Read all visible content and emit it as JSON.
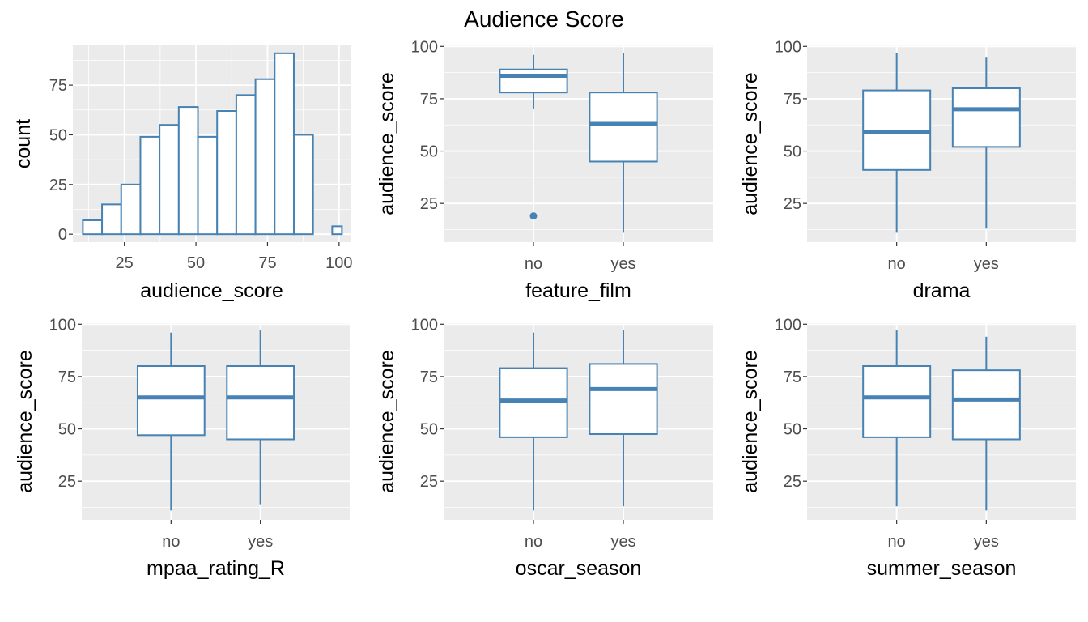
{
  "title": "Audience Score",
  "colors": {
    "panel_bg": "#EBEBEB",
    "grid": "#FFFFFF",
    "stroke": "#4682B4",
    "fill": "#FFFFFF",
    "tick_text": "#4D4D4D",
    "tick_mark": "#333333"
  },
  "chart_data": [
    {
      "type": "histogram",
      "xlabel": "audience_score",
      "ylabel": "count",
      "xlim": [
        7,
        104
      ],
      "ylim": [
        -4,
        95
      ],
      "xticks": [
        25,
        50,
        75,
        100
      ],
      "yticks": [
        0,
        25,
        50,
        75
      ],
      "bin_width": 6.7,
      "bins": [
        {
          "x0": 10.5,
          "x1": 17.2,
          "count": 7
        },
        {
          "x0": 17.2,
          "x1": 23.9,
          "count": 15
        },
        {
          "x0": 23.9,
          "x1": 30.6,
          "count": 25
        },
        {
          "x0": 30.6,
          "x1": 37.3,
          "count": 49
        },
        {
          "x0": 37.3,
          "x1": 44.0,
          "count": 55
        },
        {
          "x0": 44.0,
          "x1": 50.7,
          "count": 64
        },
        {
          "x0": 50.7,
          "x1": 57.4,
          "count": 49
        },
        {
          "x0": 57.4,
          "x1": 64.1,
          "count": 62
        },
        {
          "x0": 64.1,
          "x1": 70.8,
          "count": 70
        },
        {
          "x0": 70.8,
          "x1": 77.5,
          "count": 78
        },
        {
          "x0": 77.5,
          "x1": 84.2,
          "count": 91
        },
        {
          "x0": 84.2,
          "x1": 90.9,
          "count": 50
        },
        {
          "x0": 90.9,
          "x1": 97.6,
          "count": 0
        },
        {
          "x0": 97.6,
          "x1": 101.0,
          "count": 4
        }
      ]
    },
    {
      "type": "boxplot",
      "xlabel": "feature_film",
      "ylabel": "audience_score",
      "ylim": [
        6.5,
        100.5
      ],
      "yticks": [
        25,
        50,
        75,
        100
      ],
      "categories": [
        "no",
        "yes"
      ],
      "boxes": [
        {
          "low": 70,
          "q1": 78,
          "median": 86,
          "q3": 89,
          "high": 96,
          "outliers": [
            19
          ]
        },
        {
          "low": 11,
          "q1": 45,
          "median": 63,
          "q3": 78,
          "high": 97,
          "outliers": []
        }
      ]
    },
    {
      "type": "boxplot",
      "xlabel": "drama",
      "ylabel": "audience_score",
      "ylim": [
        6.5,
        100.5
      ],
      "yticks": [
        25,
        50,
        75,
        100
      ],
      "categories": [
        "no",
        "yes"
      ],
      "boxes": [
        {
          "low": 11,
          "q1": 41,
          "median": 59,
          "q3": 79,
          "high": 97,
          "outliers": []
        },
        {
          "low": 13,
          "q1": 52,
          "median": 70,
          "q3": 80,
          "high": 95,
          "outliers": []
        }
      ]
    },
    {
      "type": "boxplot",
      "xlabel": "mpaa_rating_R",
      "ylabel": "audience_score",
      "ylim": [
        6.5,
        100.5
      ],
      "yticks": [
        25,
        50,
        75,
        100
      ],
      "categories": [
        "no",
        "yes"
      ],
      "boxes": [
        {
          "low": 11,
          "q1": 47,
          "median": 65,
          "q3": 80,
          "high": 96,
          "outliers": []
        },
        {
          "low": 14,
          "q1": 45,
          "median": 65,
          "q3": 80,
          "high": 97,
          "outliers": []
        }
      ]
    },
    {
      "type": "boxplot",
      "xlabel": "oscar_season",
      "ylabel": "audience_score",
      "ylim": [
        6.5,
        100.5
      ],
      "yticks": [
        25,
        50,
        75,
        100
      ],
      "categories": [
        "no",
        "yes"
      ],
      "boxes": [
        {
          "low": 11,
          "q1": 46,
          "median": 63.5,
          "q3": 79,
          "high": 96,
          "outliers": []
        },
        {
          "low": 13,
          "q1": 47.5,
          "median": 69,
          "q3": 81,
          "high": 97,
          "outliers": []
        }
      ]
    },
    {
      "type": "boxplot",
      "xlabel": "summer_season",
      "ylabel": "audience_score",
      "ylim": [
        6.5,
        100.5
      ],
      "yticks": [
        25,
        50,
        75,
        100
      ],
      "categories": [
        "no",
        "yes"
      ],
      "boxes": [
        {
          "low": 13,
          "q1": 46,
          "median": 65,
          "q3": 80,
          "high": 97,
          "outliers": []
        },
        {
          "low": 11,
          "q1": 45,
          "median": 64,
          "q3": 78,
          "high": 94,
          "outliers": []
        }
      ]
    }
  ]
}
